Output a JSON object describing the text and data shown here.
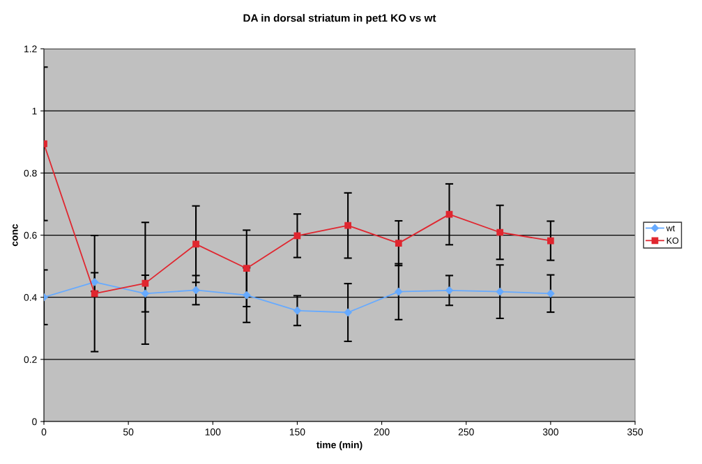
{
  "chart_data": {
    "type": "line",
    "title": "DA in dorsal striatum in pet1 KO vs wt",
    "xlabel": "time (min)",
    "ylabel": "conc",
    "x": [
      0,
      30,
      60,
      90,
      120,
      150,
      180,
      210,
      240,
      270,
      300
    ],
    "series": [
      {
        "name": "wt",
        "color": "#66aaff",
        "marker": "diamond",
        "values": [
          0.4,
          0.449,
          0.412,
          0.423,
          0.407,
          0.357,
          0.351,
          0.418,
          0.422,
          0.418,
          0.412
        ],
        "errors": [
          0.088,
          0.03,
          0.059,
          0.047,
          0.088,
          0.048,
          0.093,
          0.09,
          0.048,
          0.086,
          0.06
        ]
      },
      {
        "name": "KO",
        "color": "#e0262f",
        "marker": "square",
        "values": [
          0.894,
          0.412,
          0.445,
          0.571,
          0.493,
          0.598,
          0.631,
          0.574,
          0.667,
          0.609,
          0.582
        ],
        "errors": [
          0.247,
          0.187,
          0.196,
          0.123,
          0.123,
          0.07,
          0.105,
          0.072,
          0.098,
          0.087,
          0.063
        ]
      }
    ],
    "xlim": [
      0,
      350
    ],
    "xticks": [
      0,
      50,
      100,
      150,
      200,
      250,
      300,
      350
    ],
    "ylim": [
      0,
      1.2
    ],
    "yticks": [
      0,
      0.2,
      0.4,
      0.6,
      0.8,
      1,
      1.2
    ],
    "grid": "y",
    "legend": "right"
  }
}
